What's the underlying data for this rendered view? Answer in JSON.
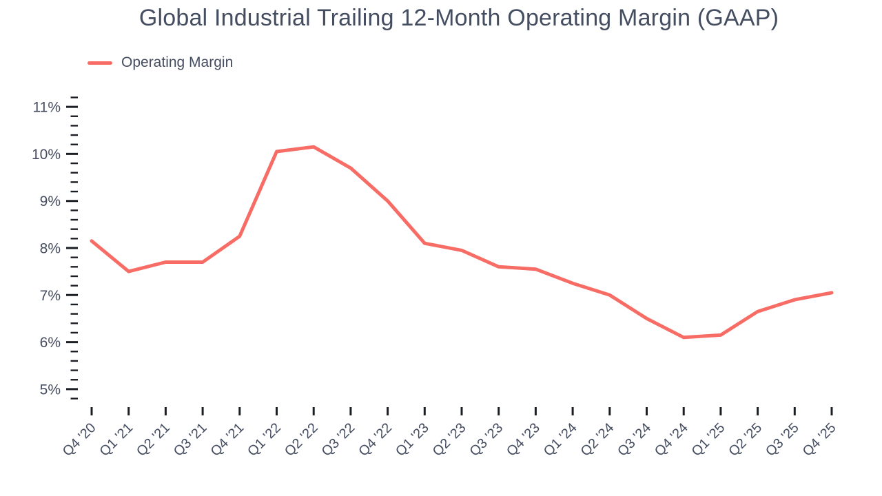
{
  "header": {
    "title": "Global Industrial Trailing 12-Month Operating Margin (GAAP)"
  },
  "legend": {
    "label": "Operating Margin"
  },
  "colors": {
    "line": "#F76C65",
    "text": "#454D60",
    "tick": "#1B1E23"
  },
  "chart_data": {
    "type": "line",
    "title": "Global Industrial Trailing 12-Month Operating Margin (GAAP)",
    "categories": [
      "Q4 '20",
      "Q1 '21",
      "Q2 '21",
      "Q3 '21",
      "Q4 '21",
      "Q1 '22",
      "Q2 '22",
      "Q3 '22",
      "Q4 '22",
      "Q1 '23",
      "Q2 '23",
      "Q3 '23",
      "Q4 '23",
      "Q1 '24",
      "Q2 '24",
      "Q3 '24",
      "Q4 '24",
      "Q1 '25",
      "Q2 '25",
      "Q3 '25",
      "Q4 '25"
    ],
    "series": [
      {
        "name": "Operating Margin",
        "color": "#F76C65",
        "values": [
          8.15,
          7.5,
          7.7,
          7.7,
          8.25,
          10.05,
          10.15,
          9.7,
          9.0,
          8.1,
          7.95,
          7.6,
          7.55,
          7.25,
          7.0,
          6.5,
          6.1,
          6.15,
          6.65,
          6.9,
          7.05
        ]
      }
    ],
    "xlabel": "",
    "ylabel": "",
    "y_axis": {
      "min": 4.8,
      "max": 11.2,
      "major_tick_step": 1,
      "minor_tick_step": 0.2,
      "major_tick_labels": [
        "5%",
        "6%",
        "7%",
        "8%",
        "9%",
        "10%",
        "11%"
      ],
      "unit": "%"
    },
    "grid": false,
    "legend_position": "top-left"
  }
}
